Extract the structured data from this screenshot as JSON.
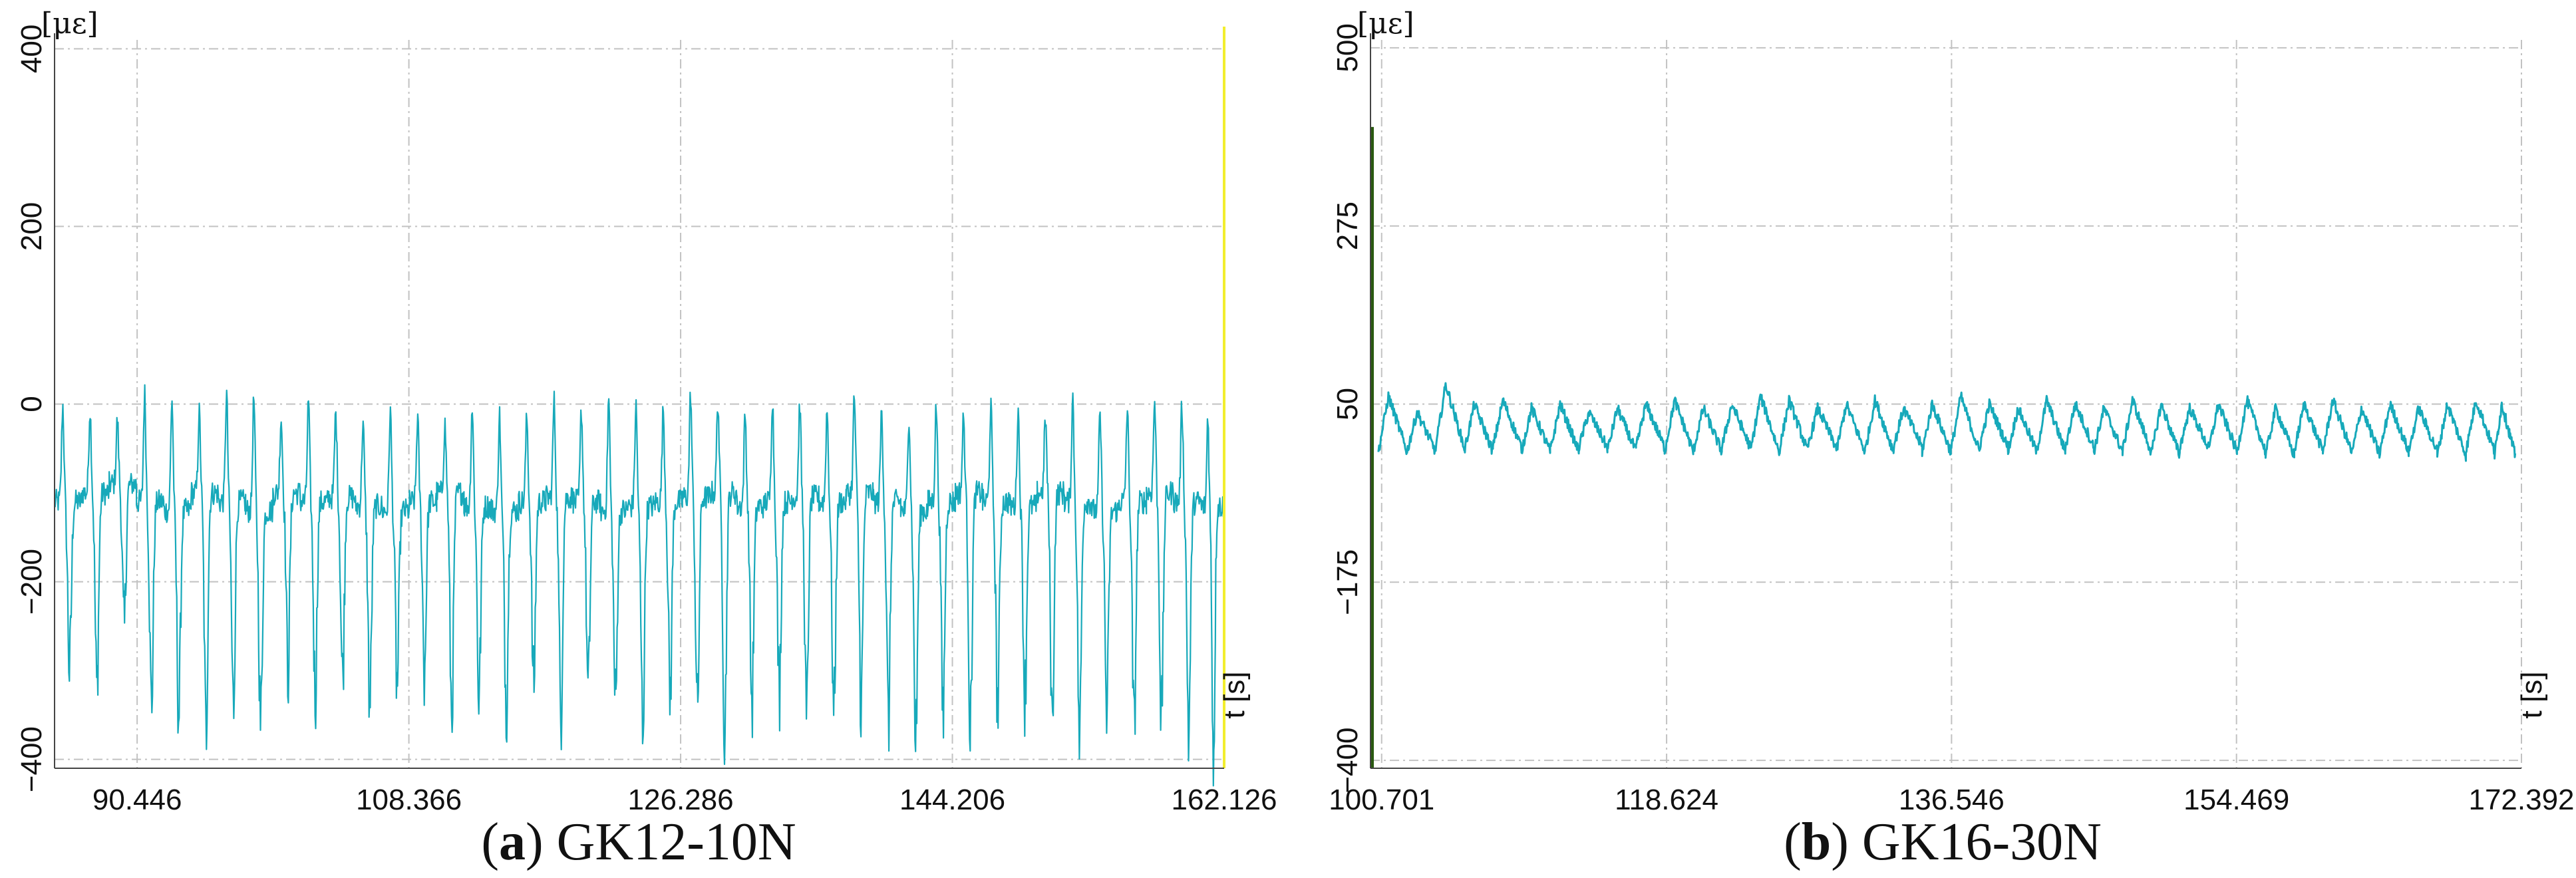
{
  "chart_data": [
    {
      "type": "line",
      "caption_letter": "a",
      "caption_text": "GK12-10N",
      "ylabel": "[με]",
      "xlabel": "t [s]",
      "xlim": [
        85.0,
        162.126
      ],
      "ylim": [
        -410,
        410
      ],
      "y_ticks": [
        {
          "value": 400,
          "label": "400"
        },
        {
          "value": 200,
          "label": "200"
        },
        {
          "value": 0,
          "label": "0"
        },
        {
          "value": -200,
          "label": "−200"
        },
        {
          "value": -400,
          "label": "−400"
        }
      ],
      "x_ticks": [
        {
          "value": 90.446,
          "label": "90.446"
        },
        {
          "value": 108.366,
          "label": "108.366"
        },
        {
          "value": 126.286,
          "label": "126.286"
        },
        {
          "value": 144.206,
          "label": "144.206"
        },
        {
          "value": 162.126,
          "label": "162.126"
        }
      ],
      "series": [
        {
          "color": "#17a9ba",
          "x": [
            85.0,
            86.8,
            88.6,
            90.4,
            92.2,
            94.0,
            95.8,
            97.6,
            99.4,
            101.2,
            103.0,
            104.8,
            106.6,
            108.4,
            110.2,
            112.0,
            113.8,
            115.6,
            117.4,
            119.2,
            121.0,
            122.8,
            124.6,
            126.4,
            128.2,
            130.0,
            131.8,
            133.6,
            135.4,
            137.2,
            139.0,
            140.8,
            142.6,
            144.4,
            146.2,
            148.0,
            149.8,
            151.6,
            153.4,
            155.2,
            157.0,
            158.8,
            160.6,
            162.1
          ],
          "max": [
            10,
            5,
            -10,
            25,
            20,
            0,
            25,
            20,
            -5,
            15,
            0,
            -10,
            5,
            -5,
            -15,
            10,
            0,
            -5,
            15,
            5,
            20,
            10,
            5,
            25,
            15,
            0,
            20,
            10,
            5,
            20,
            5,
            0,
            10,
            -5,
            10,
            5,
            -5,
            20,
            0,
            5,
            15,
            10,
            0,
            -80
          ],
          "min": [
            -300,
            -320,
            -260,
            -340,
            -350,
            -370,
            -340,
            -360,
            -300,
            -330,
            -310,
            -340,
            -320,
            -300,
            -350,
            -330,
            -340,
            -320,
            -350,
            -330,
            -340,
            -360,
            -330,
            -350,
            -370,
            -340,
            -330,
            -360,
            -350,
            -340,
            -360,
            -380,
            -350,
            -370,
            -340,
            -330,
            -360,
            -380,
            -350,
            -370,
            -360,
            -370,
            -400,
            -150
          ],
          "mid": [
            -110,
            -100,
            -90,
            -110,
            -120,
            -100,
            -110,
            -120,
            -100,
            -110,
            -105,
            -115,
            -120,
            -110,
            -100,
            -115,
            -120,
            -110,
            -105,
            -110,
            -120,
            -115,
            -110,
            -105,
            -100,
            -115,
            -110,
            -105,
            -110,
            -100,
            -110,
            -120,
            -110,
            -100,
            -110,
            -115,
            -100,
            -110,
            -120,
            -110,
            -100,
            -110,
            -115,
            -110
          ]
        }
      ],
      "marker_line": {
        "x": 162.126,
        "color": "#f2ee2e"
      }
    },
    {
      "type": "line",
      "caption_letter": "b",
      "caption_text": "GK16-30N",
      "ylabel": "[με]",
      "xlabel": "t [s]",
      "xlim": [
        100.0,
        172.392
      ],
      "ylim": [
        -410,
        510
      ],
      "y_ticks": [
        {
          "value": 500,
          "label": "500"
        },
        {
          "value": 275,
          "label": "275"
        },
        {
          "value": 50,
          "label": "50"
        },
        {
          "value": -175,
          "label": "−175"
        },
        {
          "value": -400,
          "label": "−400"
        }
      ],
      "x_ticks": [
        {
          "value": 100.701,
          "label": "100.701"
        },
        {
          "value": 118.624,
          "label": "118.624"
        },
        {
          "value": 136.546,
          "label": "136.546"
        },
        {
          "value": 154.469,
          "label": "154.469"
        },
        {
          "value": 172.392,
          "label": "172.392"
        }
      ],
      "series": [
        {
          "color": "#17a9ba",
          "x": [
            100.5,
            102.3,
            104.1,
            105.9,
            107.7,
            109.5,
            111.3,
            113.1,
            114.9,
            116.7,
            118.5,
            120.3,
            122.1,
            123.9,
            125.7,
            127.5,
            129.3,
            131.1,
            132.9,
            134.7,
            136.5,
            138.3,
            140.1,
            141.9,
            143.7,
            145.5,
            147.3,
            149.1,
            150.9,
            152.7,
            154.5,
            156.3,
            158.1,
            159.9,
            161.7,
            163.5,
            165.3,
            167.1,
            168.9,
            170.7,
            172.0
          ],
          "max": [
            60,
            40,
            75,
            50,
            55,
            45,
            50,
            40,
            45,
            50,
            55,
            45,
            50,
            60,
            55,
            45,
            50,
            55,
            45,
            50,
            60,
            50,
            45,
            55,
            50,
            45,
            55,
            50,
            45,
            50,
            55,
            45,
            50,
            55,
            45,
            50,
            45,
            50,
            55,
            50,
            55
          ],
          "min": [
            -10,
            -10,
            -5,
            -10,
            -5,
            -10,
            -10,
            -5,
            -10,
            -5,
            -10,
            -10,
            -5,
            -10,
            -10,
            -5,
            -10,
            -10,
            -5,
            -10,
            -10,
            -5,
            -10,
            -10,
            -5,
            -10,
            -10,
            -15,
            -5,
            -10,
            -10,
            -15,
            -10,
            -10,
            -15,
            -10,
            -10,
            -15,
            -10,
            -15,
            -10
          ],
          "mid": [
            20,
            15,
            25,
            15,
            20,
            15,
            20,
            15,
            15,
            20,
            20,
            15,
            20,
            25,
            20,
            15,
            20,
            20,
            15,
            20,
            20,
            15,
            15,
            20,
            20,
            15,
            20,
            15,
            15,
            20,
            20,
            15,
            15,
            20,
            15,
            20,
            15,
            15,
            20,
            15,
            20
          ]
        }
      ],
      "marker_line": {
        "x": 100.0,
        "color": "#2a5a10",
        "top": 400,
        "bottom": -410
      }
    }
  ]
}
